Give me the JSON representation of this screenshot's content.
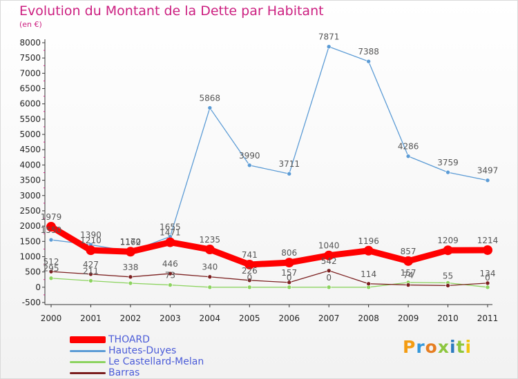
{
  "header": {
    "title": "Evolution du Montant de la Dette par Habitant",
    "subtitle": "(en €)"
  },
  "brand": {
    "letters": [
      "P",
      "r",
      "o",
      "x",
      "i",
      "t",
      "i"
    ]
  },
  "colors": {
    "title": "#cc1f80",
    "legend_text": "#4a5bd8",
    "axis": "#333333",
    "grid": "#cccccc"
  },
  "chart_data": {
    "type": "line",
    "title": "Evolution du Montant de la Dette par Habitant",
    "subtitle": "(en €)",
    "xlabel": "",
    "ylabel": "",
    "categories": [
      "2000",
      "2001",
      "2002",
      "2003",
      "2004",
      "2005",
      "2006",
      "2007",
      "2008",
      "2009",
      "2010",
      "2011"
    ],
    "ylim": [
      -500,
      8000
    ],
    "yticks": [
      -500,
      0,
      500,
      1000,
      1500,
      2000,
      2500,
      3000,
      3500,
      4000,
      4500,
      5000,
      5500,
      6000,
      6500,
      7000,
      7500,
      8000
    ],
    "grid": false,
    "legend_position": "bottom-left",
    "series": [
      {
        "name": "THOARD",
        "color": "#ff0000",
        "values": [
          1979,
          1210,
          1162,
          1471,
          1235,
          741,
          806,
          1040,
          1196,
          857,
          1209,
          1214
        ],
        "labels": [
          "1979",
          "1210",
          "1162",
          "1471",
          "1235",
          "741",
          "806",
          "1040",
          "1196",
          "857",
          "1209",
          "1214"
        ]
      },
      {
        "name": "Hautes-Duyes",
        "color": "#5b9bd5",
        "values": [
          1550,
          1390,
          1170,
          1655,
          5868,
          3990,
          3711,
          7871,
          7388,
          4286,
          3759,
          3497
        ],
        "labels": [
          "1550",
          "1390",
          "1170",
          "1655",
          "5868",
          "3990",
          "3711",
          "7871",
          "7388",
          "4286",
          "3759",
          "3497"
        ]
      },
      {
        "name": "Le Castellard-Melan",
        "color": "#8cd35f",
        "values": [
          295,
          211,
          131,
          73,
          0,
          0,
          0,
          0,
          0,
          157,
          143,
          0
        ],
        "labels": [
          "295",
          "211",
          "",
          "73",
          "",
          "0",
          "0",
          "0",
          "",
          "157",
          "",
          "0"
        ]
      },
      {
        "name": "Barras",
        "color": "#7b1f1f",
        "values": [
          512,
          427,
          338,
          446,
          340,
          226,
          157,
          542,
          114,
          74,
          55,
          134
        ],
        "labels": [
          "512",
          "427",
          "338",
          "446",
          "340",
          "226",
          "157",
          "542",
          "114",
          "74",
          "55",
          "134"
        ]
      }
    ]
  }
}
